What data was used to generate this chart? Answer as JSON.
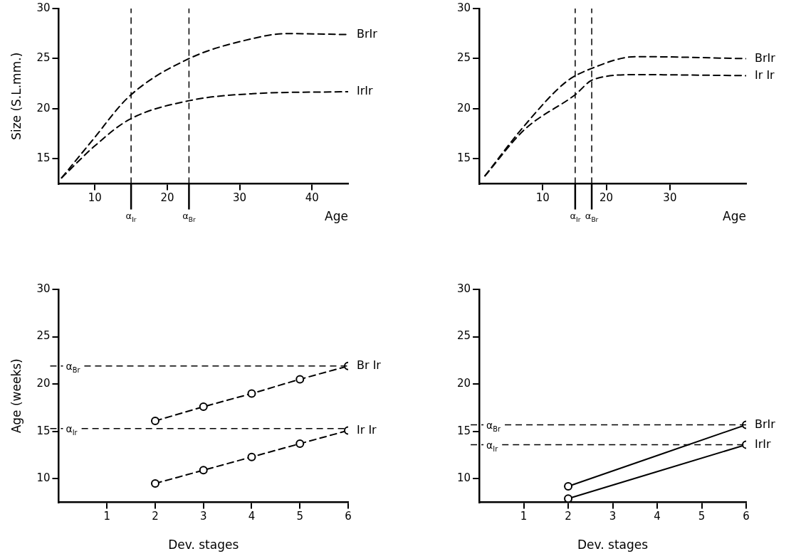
{
  "chart_data": [
    {
      "type": "line",
      "ylabel": "Size (S.L.mm.)",
      "xlabel": "Age",
      "xlim": [
        5,
        45
      ],
      "ylim": [
        12.5,
        30
      ],
      "xticks": [
        10,
        20,
        30,
        40
      ],
      "yticks": [
        15,
        20,
        25,
        30
      ],
      "legend": false,
      "marker": "none",
      "line_style": "dashed",
      "series": [
        {
          "name": "BrIr",
          "color": "#000000",
          "x": [
            5.4,
            9.6,
            14.7,
            23,
            31.8,
            36.4,
            45
          ],
          "values": [
            13.1,
            16.8,
            21.2,
            25,
            27,
            27.5,
            27.4
          ]
        },
        {
          "name": "IrIr",
          "color": "#000000",
          "x": [
            5.4,
            10,
            14.7,
            23,
            31.8,
            45
          ],
          "values": [
            13.1,
            16.3,
            18.9,
            20.8,
            21.5,
            21.7
          ]
        }
      ],
      "ref_lines": [
        {
          "axis": "x",
          "value": 15,
          "label": "α$_{Ir}$",
          "color": "#000000",
          "line_style": "dashed"
        },
        {
          "axis": "x",
          "value": 23,
          "label": "α$_{Br}$",
          "color": "#000000",
          "line_style": "dashed"
        }
      ]
    },
    {
      "type": "line",
      "xlabel": "Age",
      "xlim": [
        0,
        42
      ],
      "ylim": [
        12.5,
        30
      ],
      "xticks": [
        10,
        20,
        30
      ],
      "yticks": [
        15,
        20,
        25,
        30
      ],
      "legend": false,
      "marker": "none",
      "line_style": "dashed",
      "series": [
        {
          "name": "BrIr",
          "color": "#000000",
          "x": [
            0.9,
            7.1,
            13.7,
            17.6,
            24.7,
            42
          ],
          "values": [
            13.3,
            18.3,
            22.7,
            24,
            25.2,
            25
          ]
        },
        {
          "name": "Ir Ir",
          "color": "#000000",
          "x": [
            0.9,
            7.1,
            15.1,
            17.9,
            24.7,
            42
          ],
          "values": [
            13.3,
            17.9,
            21.4,
            22.9,
            23.4,
            23.3
          ]
        }
      ],
      "ref_lines": [
        {
          "axis": "x",
          "value": 15.1,
          "label": "α$_{Ir}$",
          "color": "#000000",
          "line_style": "dashed"
        },
        {
          "axis": "x",
          "value": 17.7,
          "label": "α$_{Br}$",
          "color": "#000000",
          "line_style": "dashed"
        }
      ]
    },
    {
      "type": "line",
      "ylabel": "Age (weeks)",
      "xlabel": "Dev. stages",
      "xlim": [
        0,
        6
      ],
      "ylim": [
        7.5,
        30
      ],
      "xticks": [
        1,
        2,
        3,
        4,
        5,
        6
      ],
      "yticks": [
        10,
        15,
        20,
        25,
        30
      ],
      "legend": false,
      "marker": "circle",
      "line_style": "dashed",
      "series": [
        {
          "name": "Br Ir",
          "color": "#000000",
          "x": [
            2,
            3,
            4,
            5,
            6
          ],
          "values": [
            16.1,
            17.6,
            19,
            20.5,
            21.9
          ]
        },
        {
          "name": "Ir Ir",
          "color": "#000000",
          "x": [
            2,
            3,
            4,
            5,
            6
          ],
          "values": [
            9.5,
            10.9,
            12.3,
            13.7,
            15.1
          ]
        }
      ],
      "ref_lines": [
        {
          "axis": "y",
          "value": 21.9,
          "label": "α$_{Br}$",
          "color": "#000000",
          "line_style": "dashed"
        },
        {
          "axis": "y",
          "value": 15.3,
          "label": "α$_{Ir}$",
          "color": "#000000",
          "line_style": "dashed"
        }
      ]
    },
    {
      "type": "line",
      "xlabel": "Dev. stages",
      "xlim": [
        0,
        6
      ],
      "ylim": [
        7.5,
        30
      ],
      "xticks": [
        1,
        2,
        3,
        4,
        5,
        6
      ],
      "yticks": [
        10,
        15,
        20,
        25,
        30
      ],
      "legend": false,
      "marker": "circle",
      "line_style": "solid",
      "series": [
        {
          "name": "BrIr",
          "color": "#000000",
          "x": [
            2,
            6
          ],
          "values": [
            9.2,
            15.7
          ]
        },
        {
          "name": "IrIr",
          "color": "#000000",
          "x": [
            2,
            6
          ],
          "values": [
            7.9,
            13.6
          ]
        }
      ],
      "ref_lines": [
        {
          "axis": "y",
          "value": 15.7,
          "label": "α$_{Br}$",
          "color": "#000000",
          "line_style": "dashed"
        },
        {
          "axis": "y",
          "value": 13.6,
          "label": "α$_{Ir}$",
          "color": "#000000",
          "line_style": "dashed"
        }
      ]
    }
  ]
}
